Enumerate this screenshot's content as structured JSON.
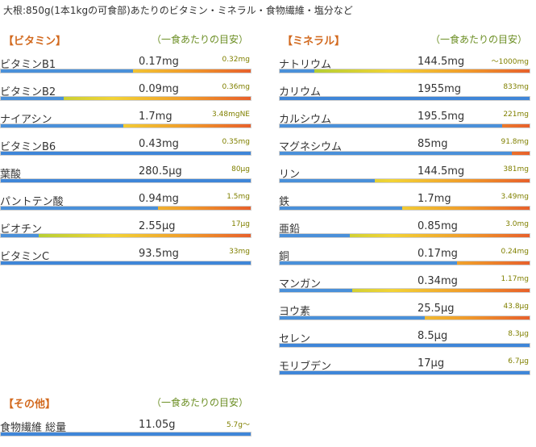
{
  "caption": "大根:850g(1本1kgの可食部)あたりのビタミン・ミネラル・食物繊維・塩分など",
  "vitamins": {
    "title": "【ビタミン】",
    "subtitle": "（一食あたりの目安）",
    "items": [
      {
        "name": "ビタミンB1",
        "amount": "0.17mg",
        "target": "0.32mg",
        "ratio": 0.53
      },
      {
        "name": "ビタミンB2",
        "amount": "0.09mg",
        "target": "0.36mg",
        "ratio": 0.25
      },
      {
        "name": "ナイアシン",
        "amount": "1.7mg",
        "target": "3.48mgNE",
        "ratio": 0.49
      },
      {
        "name": "ビタミンB6",
        "amount": "0.43mg",
        "target": "0.35mg",
        "ratio": 1.0
      },
      {
        "name": "葉酸",
        "amount": "280.5μg",
        "target": "80μg",
        "ratio": 1.0
      },
      {
        "name": "パントテン酸",
        "amount": "0.94mg",
        "target": "1.5mg",
        "ratio": 0.63
      },
      {
        "name": "ビオチン",
        "amount": "2.55μg",
        "target": "17μg",
        "ratio": 0.15
      },
      {
        "name": "ビタミンC",
        "amount": "93.5mg",
        "target": "33mg",
        "ratio": 1.0
      }
    ]
  },
  "minerals": {
    "title": "【ミネラル】",
    "subtitle": "（一食あたりの目安）",
    "items": [
      {
        "name": "ナトリウム",
        "amount": "144.5mg",
        "target": "～1000mg",
        "ratio": 0.14
      },
      {
        "name": "カリウム",
        "amount": "1955mg",
        "target": "833mg",
        "ratio": 1.0
      },
      {
        "name": "カルシウム",
        "amount": "195.5mg",
        "target": "221mg",
        "ratio": 0.89
      },
      {
        "name": "マグネシウム",
        "amount": "85mg",
        "target": "91.8mg",
        "ratio": 0.93
      },
      {
        "name": "リン",
        "amount": "144.5mg",
        "target": "381mg",
        "ratio": 0.38
      },
      {
        "name": "鉄",
        "amount": "1.7mg",
        "target": "3.49mg",
        "ratio": 0.49
      },
      {
        "name": "亜鉛",
        "amount": "0.85mg",
        "target": "3.0mg",
        "ratio": 0.28
      },
      {
        "name": "銅",
        "amount": "0.17mg",
        "target": "0.24mg",
        "ratio": 0.71
      },
      {
        "name": "マンガン",
        "amount": "0.34mg",
        "target": "1.17mg",
        "ratio": 0.29
      },
      {
        "name": "ヨウ素",
        "amount": "25.5μg",
        "target": "43.8μg",
        "ratio": 0.58
      },
      {
        "name": "セレン",
        "amount": "8.5μg",
        "target": "8.3μg",
        "ratio": 1.0
      },
      {
        "name": "モリブデン",
        "amount": "17μg",
        "target": "6.7μg",
        "ratio": 1.0
      }
    ]
  },
  "others": {
    "title": "【その他】",
    "subtitle": "（一食あたりの目安）",
    "items": [
      {
        "name": "食物繊維 総量",
        "amount": "11.05g",
        "target": "5.7g～",
        "ratio": 1.0
      }
    ]
  },
  "colors": {
    "accent_title": "#d2691e",
    "subtitle": "#6b8e23",
    "target": "#808000",
    "bar_fill": "#4a90d9"
  }
}
